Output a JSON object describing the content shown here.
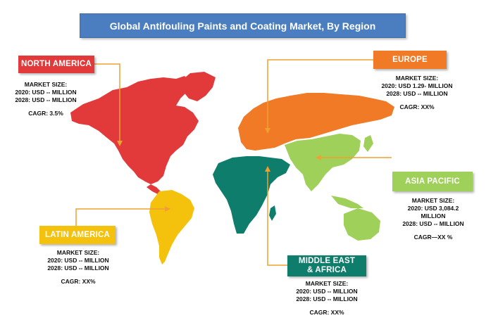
{
  "title": "Global Antifouling Paints and Coating Market, By Region",
  "colors": {
    "title_bar": "#4a7ec0",
    "north_america": "#e23a3a",
    "europe": "#f07a25",
    "asia_pacific": "#9fd05a",
    "latin_america": "#f4c20d",
    "middle_east_africa": "#0f7d6b",
    "connector_line": "#f0a030"
  },
  "regions": {
    "north_america": {
      "label": "NORTH AMERICA",
      "market_size": "MARKET SIZE:",
      "line_2020": "2020: USD -- MILLION",
      "line_2028": "2028: USD -- MILLION",
      "cagr": "CAGR: 3.5%"
    },
    "europe": {
      "label": "EUROPE",
      "market_size": "MARKET SIZE:",
      "line_2020": "2020: USD 1.29- MILLION",
      "line_2028": "2028: USD -- MILLION",
      "cagr": "CAGR: XX%"
    },
    "asia_pacific": {
      "label": "ASIA PACIFIC",
      "market_size": "MARKET SIZE:",
      "line_2020": "2020: USD  3,084.2",
      "line_2020_cont": "MILLION",
      "line_2028": "2028: USD -- MILLION",
      "cagr": "CAGR—XX    %"
    },
    "latin_america": {
      "label": "LATIN AMERICA",
      "market_size": "MARKET SIZE:",
      "line_2020": "2020: USD -- MILLION",
      "line_2028": "2028: USD -- MILLION",
      "cagr": "CAGR: XX%"
    },
    "middle_east_africa": {
      "label_line1": "MIDDLE EAST",
      "label_line2": "& AFRICA",
      "market_size": "MARKET SIZE:",
      "line_2020": "2020: USD -- MILLION",
      "line_2028": "2028: USD -- MILLION",
      "cagr": "CAGR: XX%"
    }
  }
}
